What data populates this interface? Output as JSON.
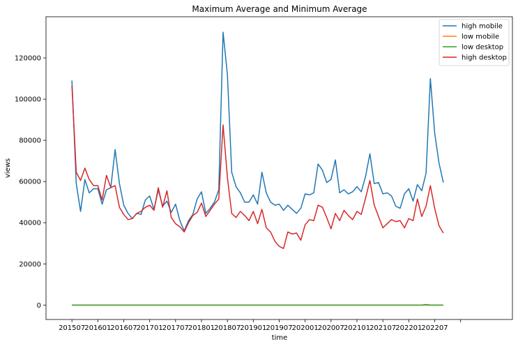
{
  "chart_data": {
    "type": "line",
    "title": "Maximum Average and Minimum Average",
    "xlabel": "time",
    "ylabel": "views",
    "x_tick_labels": [
      "201507",
      "201601",
      "201607",
      "201701",
      "201707",
      "201801",
      "201807",
      "201901",
      "201907",
      "202001",
      "202007",
      "202101",
      "202107",
      "202201",
      "202207"
    ],
    "first_month": "2015-07",
    "xlim": [
      -6,
      102
    ],
    "ylim": [
      -7000,
      140000
    ],
    "y_ticks": [
      0,
      20000,
      40000,
      60000,
      80000,
      100000,
      120000
    ],
    "grid": false,
    "legend_position": "top-right",
    "series": [
      {
        "name": "high mobile",
        "color": "#1f77b4",
        "values": [
          109000,
          59000,
          45500,
          61000,
          54500,
          56500,
          56500,
          49000,
          56000,
          57000,
          75500,
          59000,
          48500,
          44500,
          42000,
          44500,
          44000,
          51000,
          53000,
          46500,
          56000,
          48000,
          50500,
          45000,
          49000,
          41000,
          36000,
          41000,
          44000,
          51500,
          55000,
          44500,
          47000,
          50000,
          56000,
          132500,
          112000,
          64500,
          57500,
          54500,
          50000,
          50000,
          53500,
          49000,
          64500,
          54500,
          50000,
          48500,
          49000,
          46000,
          48500,
          46500,
          44500,
          47000,
          54000,
          53500,
          54500,
          68500,
          65500,
          59500,
          61000,
          70500,
          54500,
          56000,
          54000,
          55000,
          57500,
          55000,
          62500,
          73500,
          59000,
          59500,
          54000,
          54500,
          53000,
          48000,
          47000,
          54000,
          56500,
          50500,
          58500,
          55500,
          64000,
          110000,
          83500,
          69000,
          59500
        ]
      },
      {
        "name": "low mobile",
        "color": "#ff7f0e",
        "values": [
          0,
          0,
          0,
          0,
          0,
          0,
          0,
          0,
          0,
          0,
          0,
          0,
          0,
          0,
          0,
          0,
          0,
          0,
          0,
          0,
          0,
          0,
          0,
          0,
          0,
          0,
          0,
          0,
          0,
          0,
          0,
          0,
          0,
          0,
          0,
          0,
          0,
          0,
          0,
          0,
          0,
          0,
          0,
          0,
          0,
          0,
          0,
          0,
          0,
          0,
          0,
          0,
          0,
          0,
          0,
          0,
          0,
          0,
          0,
          0,
          0,
          0,
          0,
          0,
          0,
          0,
          0,
          0,
          0,
          0,
          0,
          0,
          0,
          0,
          0,
          0,
          0,
          0,
          0,
          0,
          0,
          0,
          0,
          0,
          0,
          0,
          0
        ]
      },
      {
        "name": "low desktop",
        "color": "#2ca02c",
        "values": [
          0,
          0,
          0,
          0,
          0,
          0,
          0,
          0,
          0,
          0,
          0,
          0,
          0,
          0,
          0,
          0,
          0,
          0,
          0,
          0,
          0,
          0,
          0,
          0,
          0,
          0,
          0,
          0,
          0,
          0,
          0,
          0,
          0,
          0,
          0,
          0,
          0,
          0,
          0,
          0,
          0,
          0,
          0,
          0,
          0,
          0,
          0,
          0,
          0,
          0,
          0,
          0,
          0,
          0,
          0,
          0,
          0,
          0,
          0,
          0,
          0,
          0,
          0,
          0,
          0,
          0,
          0,
          0,
          0,
          0,
          0,
          0,
          0,
          0,
          0,
          0,
          0,
          0,
          0,
          0,
          0,
          0,
          300,
          0,
          0,
          0,
          0
        ]
      },
      {
        "name": "high desktop",
        "color": "#d62728",
        "values": [
          106500,
          64500,
          60500,
          66500,
          61000,
          58000,
          58000,
          51000,
          63000,
          57000,
          58000,
          47500,
          44000,
          41500,
          42000,
          44500,
          45500,
          47500,
          48500,
          46000,
          57000,
          47500,
          55500,
          42500,
          39500,
          38000,
          35500,
          40000,
          43500,
          45000,
          49500,
          43000,
          46000,
          49000,
          51500,
          87500,
          62000,
          44500,
          42500,
          45500,
          43500,
          41000,
          45500,
          39500,
          46500,
          37500,
          35500,
          31000,
          28500,
          27500,
          35500,
          34500,
          35000,
          31500,
          39000,
          41500,
          41000,
          48500,
          47500,
          42500,
          37000,
          44500,
          41000,
          46000,
          43500,
          41500,
          45500,
          44000,
          52000,
          60500,
          48500,
          43000,
          37500,
          39500,
          41500,
          40500,
          41000,
          37500,
          42000,
          41000,
          51500,
          43000,
          48000,
          58000,
          47000,
          38500,
          35000
        ]
      }
    ]
  }
}
